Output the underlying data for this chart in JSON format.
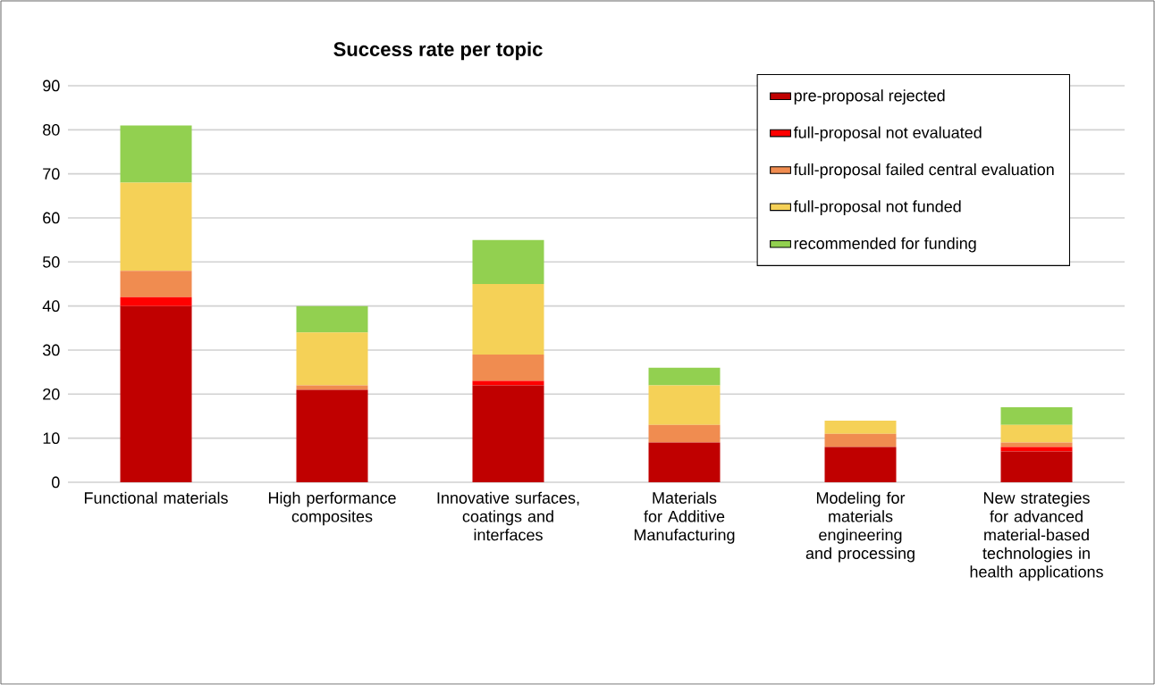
{
  "chart_data": {
    "type": "bar",
    "title": "Success rate per topic",
    "stacked": true,
    "categories": [
      "Functional materials",
      "High performance composites",
      "Innovative surfaces, coatings and interfaces",
      "Materials for Additive Manufacturing",
      "Modeling for materials engineering and processing",
      "New strategies for advanced material-based technologies in health applications"
    ],
    "series": [
      {
        "name": "pre-proposal rejected",
        "color": "#c00000",
        "values": [
          40,
          21,
          22,
          9,
          8,
          7
        ]
      },
      {
        "name": "full-proposal not evaluated",
        "color": "#ff0000",
        "values": [
          2,
          0,
          1,
          0,
          0,
          1
        ]
      },
      {
        "name": "full-proposal failed central evaluation",
        "color": "#f08c50",
        "values": [
          6,
          1,
          6,
          4,
          3,
          1
        ]
      },
      {
        "name": "full-proposal not funded",
        "color": "#f5d157",
        "values": [
          20,
          12,
          16,
          9,
          3,
          4
        ]
      },
      {
        "name": "recommended for funding",
        "color": "#92d050",
        "values": [
          13,
          6,
          10,
          4,
          0,
          4
        ]
      }
    ],
    "ylim": [
      0,
      90
    ],
    "yticks": [
      0,
      10,
      20,
      30,
      40,
      50,
      60,
      70,
      80,
      90
    ],
    "grid": "y",
    "legend": "top right"
  }
}
